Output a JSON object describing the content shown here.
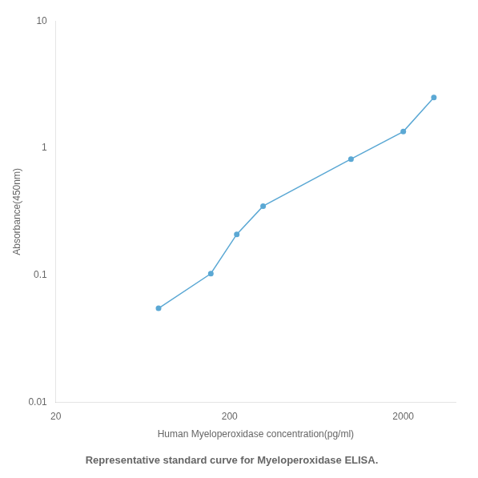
{
  "chart_data": {
    "type": "line",
    "title": "Representative standard curve for Myeloperoxidase ELISA.",
    "x_label": "Human Myeloperoxidase concentration(pg/ml)",
    "y_label": "Absorbance(450nm)",
    "x": [
      78,
      156,
      220,
      312,
      1000,
      2000,
      3000
    ],
    "values": [
      0.055,
      0.103,
      0.21,
      0.35,
      0.82,
      1.35,
      2.5
    ],
    "color": "#5ba8d4",
    "marker": "circle",
    "log": true,
    "grid": false,
    "xlim": [
      20,
      4000
    ],
    "ylim": [
      0.01,
      10
    ],
    "xticks": [
      20,
      200,
      2000
    ],
    "yticks": [
      0.01,
      0.1,
      1,
      10
    ]
  }
}
